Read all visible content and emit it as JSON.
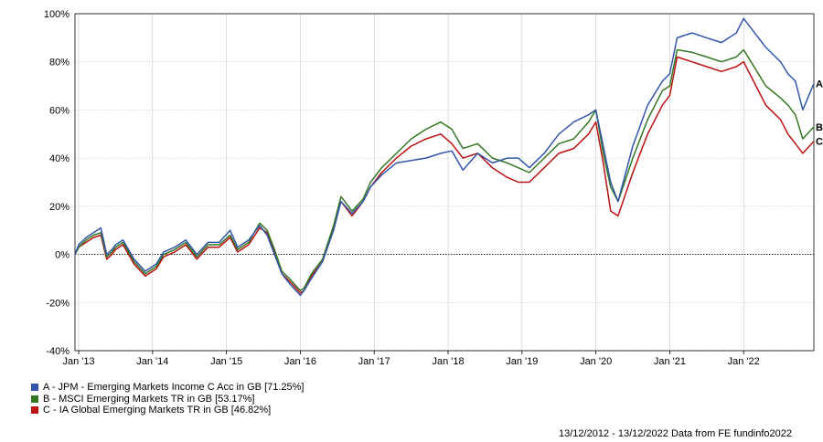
{
  "chart_data": {
    "type": "line",
    "title": "",
    "xlabel": "",
    "ylabel": "",
    "ylim": [
      -40,
      100
    ],
    "y_ticks": [
      -40,
      -20,
      0,
      20,
      40,
      60,
      80,
      100
    ],
    "y_tick_labels": [
      "-40%",
      "-20%",
      "0%",
      "20%",
      "40%",
      "60%",
      "80%",
      "100%"
    ],
    "x_ticks": [
      2013,
      2014,
      2015,
      2016,
      2017,
      2018,
      2019,
      2020,
      2021,
      2022
    ],
    "x_tick_labels": [
      "Jan '13",
      "Jan '14",
      "Jan '15",
      "Jan '16",
      "Jan '17",
      "Jan '18",
      "Jan '19",
      "Jan '20",
      "Jan '21",
      "Jan '22"
    ],
    "xlim": [
      2012.95,
      2022.95
    ],
    "grid": true,
    "legend_position": "bottom-left",
    "colors": {
      "A": "#3355aa",
      "B": "#337722",
      "C": "#bb1111"
    },
    "x": [
      2012.95,
      2013.0,
      2013.1,
      2013.2,
      2013.3,
      2013.38,
      2013.45,
      2013.5,
      2013.6,
      2013.75,
      2013.9,
      2014.05,
      2014.15,
      2014.3,
      2014.45,
      2014.6,
      2014.75,
      2014.9,
      2015.05,
      2015.15,
      2015.3,
      2015.45,
      2015.55,
      2015.65,
      2015.75,
      2015.85,
      2016.0,
      2016.05,
      2016.15,
      2016.3,
      2016.45,
      2016.55,
      2016.7,
      2016.85,
      2016.95,
      2017.1,
      2017.3,
      2017.5,
      2017.7,
      2017.9,
      2018.05,
      2018.2,
      2018.4,
      2018.6,
      2018.8,
      2018.95,
      2019.1,
      2019.3,
      2019.5,
      2019.7,
      2019.9,
      2020.0,
      2020.1,
      2020.2,
      2020.3,
      2020.5,
      2020.7,
      2020.9,
      2021.0,
      2021.1,
      2021.3,
      2021.5,
      2021.7,
      2021.9,
      2022.0,
      2022.1,
      2022.3,
      2022.5,
      2022.6,
      2022.7,
      2022.8,
      2022.95
    ],
    "series": [
      {
        "name": "A",
        "end_label": "A",
        "legend": "A - JPM - Emerging Markets Income C Acc in GB [71.25%]",
        "values": [
          0,
          4,
          7,
          9,
          11,
          0,
          2,
          4,
          6,
          -2,
          -7,
          -4,
          1,
          3,
          6,
          0,
          5,
          5,
          10,
          3,
          6,
          12,
          8,
          0,
          -8,
          -12,
          -17,
          -15,
          -10,
          -3,
          10,
          22,
          17,
          22,
          28,
          33,
          38,
          39,
          40,
          42,
          43,
          35,
          42,
          38,
          40,
          40,
          36,
          42,
          50,
          55,
          58,
          60,
          45,
          30,
          22,
          45,
          62,
          72,
          75,
          90,
          92,
          90,
          88,
          92,
          98,
          94,
          86,
          80,
          75,
          72,
          60,
          71
        ]
      },
      {
        "name": "B",
        "end_label": "B",
        "legend": "B - MSCI Emerging Markets TR in GB [53.17%]",
        "values": [
          0,
          3,
          6,
          8,
          9,
          -1,
          1,
          3,
          5,
          -3,
          -8,
          -5,
          0,
          2,
          5,
          -1,
          4,
          4,
          8,
          2,
          5,
          13,
          10,
          2,
          -7,
          -10,
          -15,
          -14,
          -8,
          -2,
          12,
          24,
          18,
          23,
          30,
          36,
          42,
          48,
          52,
          55,
          52,
          44,
          46,
          40,
          38,
          36,
          34,
          40,
          46,
          48,
          55,
          60,
          42,
          28,
          22,
          40,
          56,
          68,
          70,
          85,
          84,
          82,
          80,
          82,
          85,
          80,
          70,
          65,
          62,
          58,
          48,
          53
        ]
      },
      {
        "name": "C",
        "end_label": "C",
        "legend": "C - IA Global Emerging Markets TR in GB [46.82%]",
        "values": [
          0,
          3,
          5,
          7,
          8,
          -2,
          0,
          2,
          4,
          -4,
          -9,
          -6,
          -1,
          1,
          4,
          -2,
          3,
          3,
          7,
          1,
          4,
          11,
          9,
          1,
          -8,
          -11,
          -16,
          -15,
          -9,
          -3,
          11,
          22,
          16,
          22,
          28,
          34,
          40,
          45,
          48,
          50,
          46,
          40,
          42,
          36,
          32,
          30,
          30,
          36,
          42,
          44,
          50,
          55,
          38,
          18,
          16,
          34,
          50,
          62,
          66,
          82,
          80,
          78,
          76,
          78,
          80,
          74,
          62,
          56,
          50,
          46,
          42,
          47
        ]
      }
    ]
  },
  "legend": {
    "items": [
      {
        "label": "A - JPM - Emerging Markets Income C Acc in GB [71.25%]",
        "color": "#3355aa"
      },
      {
        "label": "B - MSCI Emerging Markets TR in GB [53.17%]",
        "color": "#337722"
      },
      {
        "label": "C - IA Global Emerging Markets TR in GB [46.82%]",
        "color": "#bb1111"
      }
    ]
  },
  "footer": {
    "text": "13/12/2012 - 13/12/2022 Data from FE fundinfo2022"
  }
}
